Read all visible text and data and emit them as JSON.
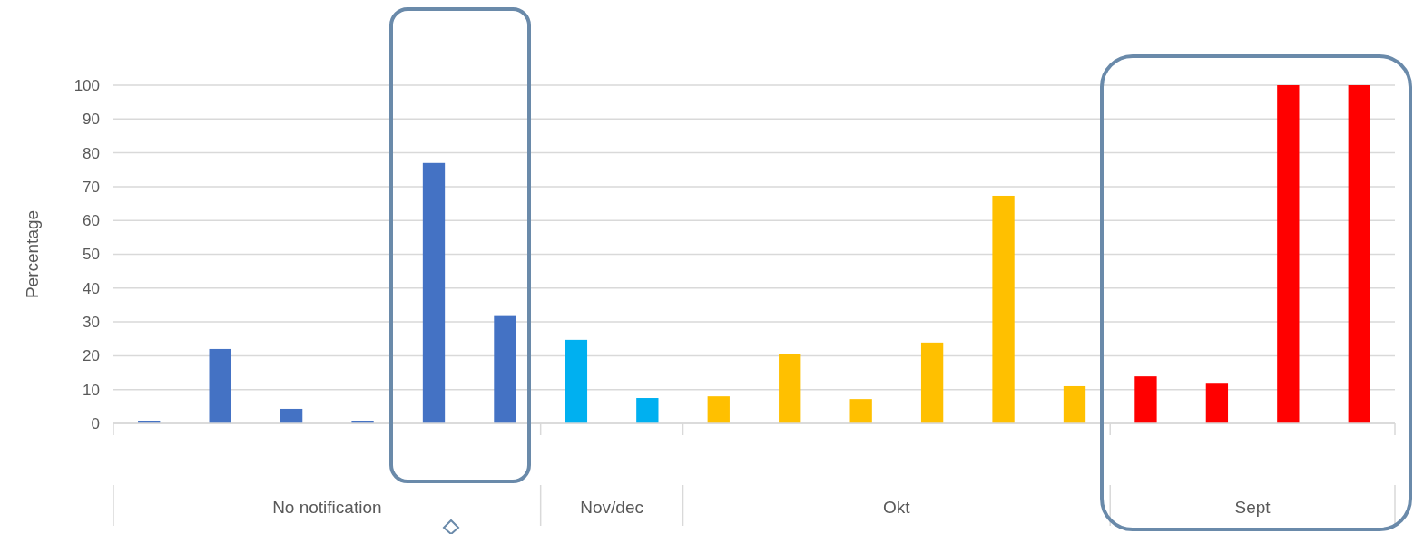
{
  "chart_data": {
    "type": "bar",
    "ylabel": "Percentage",
    "categories": [
      null,
      null,
      null,
      null,
      null,
      null,
      null,
      null,
      null,
      null,
      null,
      null,
      null,
      null,
      null,
      null,
      null,
      null
    ],
    "values": [
      0.8,
      22,
      4.3,
      0.8,
      77,
      32,
      24.7,
      7.5,
      8,
      20.4,
      7.2,
      23.9,
      67.3,
      11,
      13.9,
      12,
      100,
      100
    ],
    "colors": [
      "#4472c4",
      "#4472c4",
      "#4472c4",
      "#4472c4",
      "#4472c4",
      "#4472c4",
      "#00b0f0",
      "#00b0f0",
      "#ffc000",
      "#ffc000",
      "#ffc000",
      "#ffc000",
      "#ffc000",
      "#ffc000",
      "#ff0000",
      "#ff0000",
      "#ff0000",
      "#ff0000"
    ],
    "annotations": [
      "No notification",
      "Nov/dec",
      "Okt",
      "Sept"
    ],
    "ylim": [
      0,
      100
    ],
    "yticks": [
      0,
      10,
      20,
      30,
      40,
      50,
      60,
      70,
      80,
      90,
      100
    ],
    "grid": "y"
  }
}
